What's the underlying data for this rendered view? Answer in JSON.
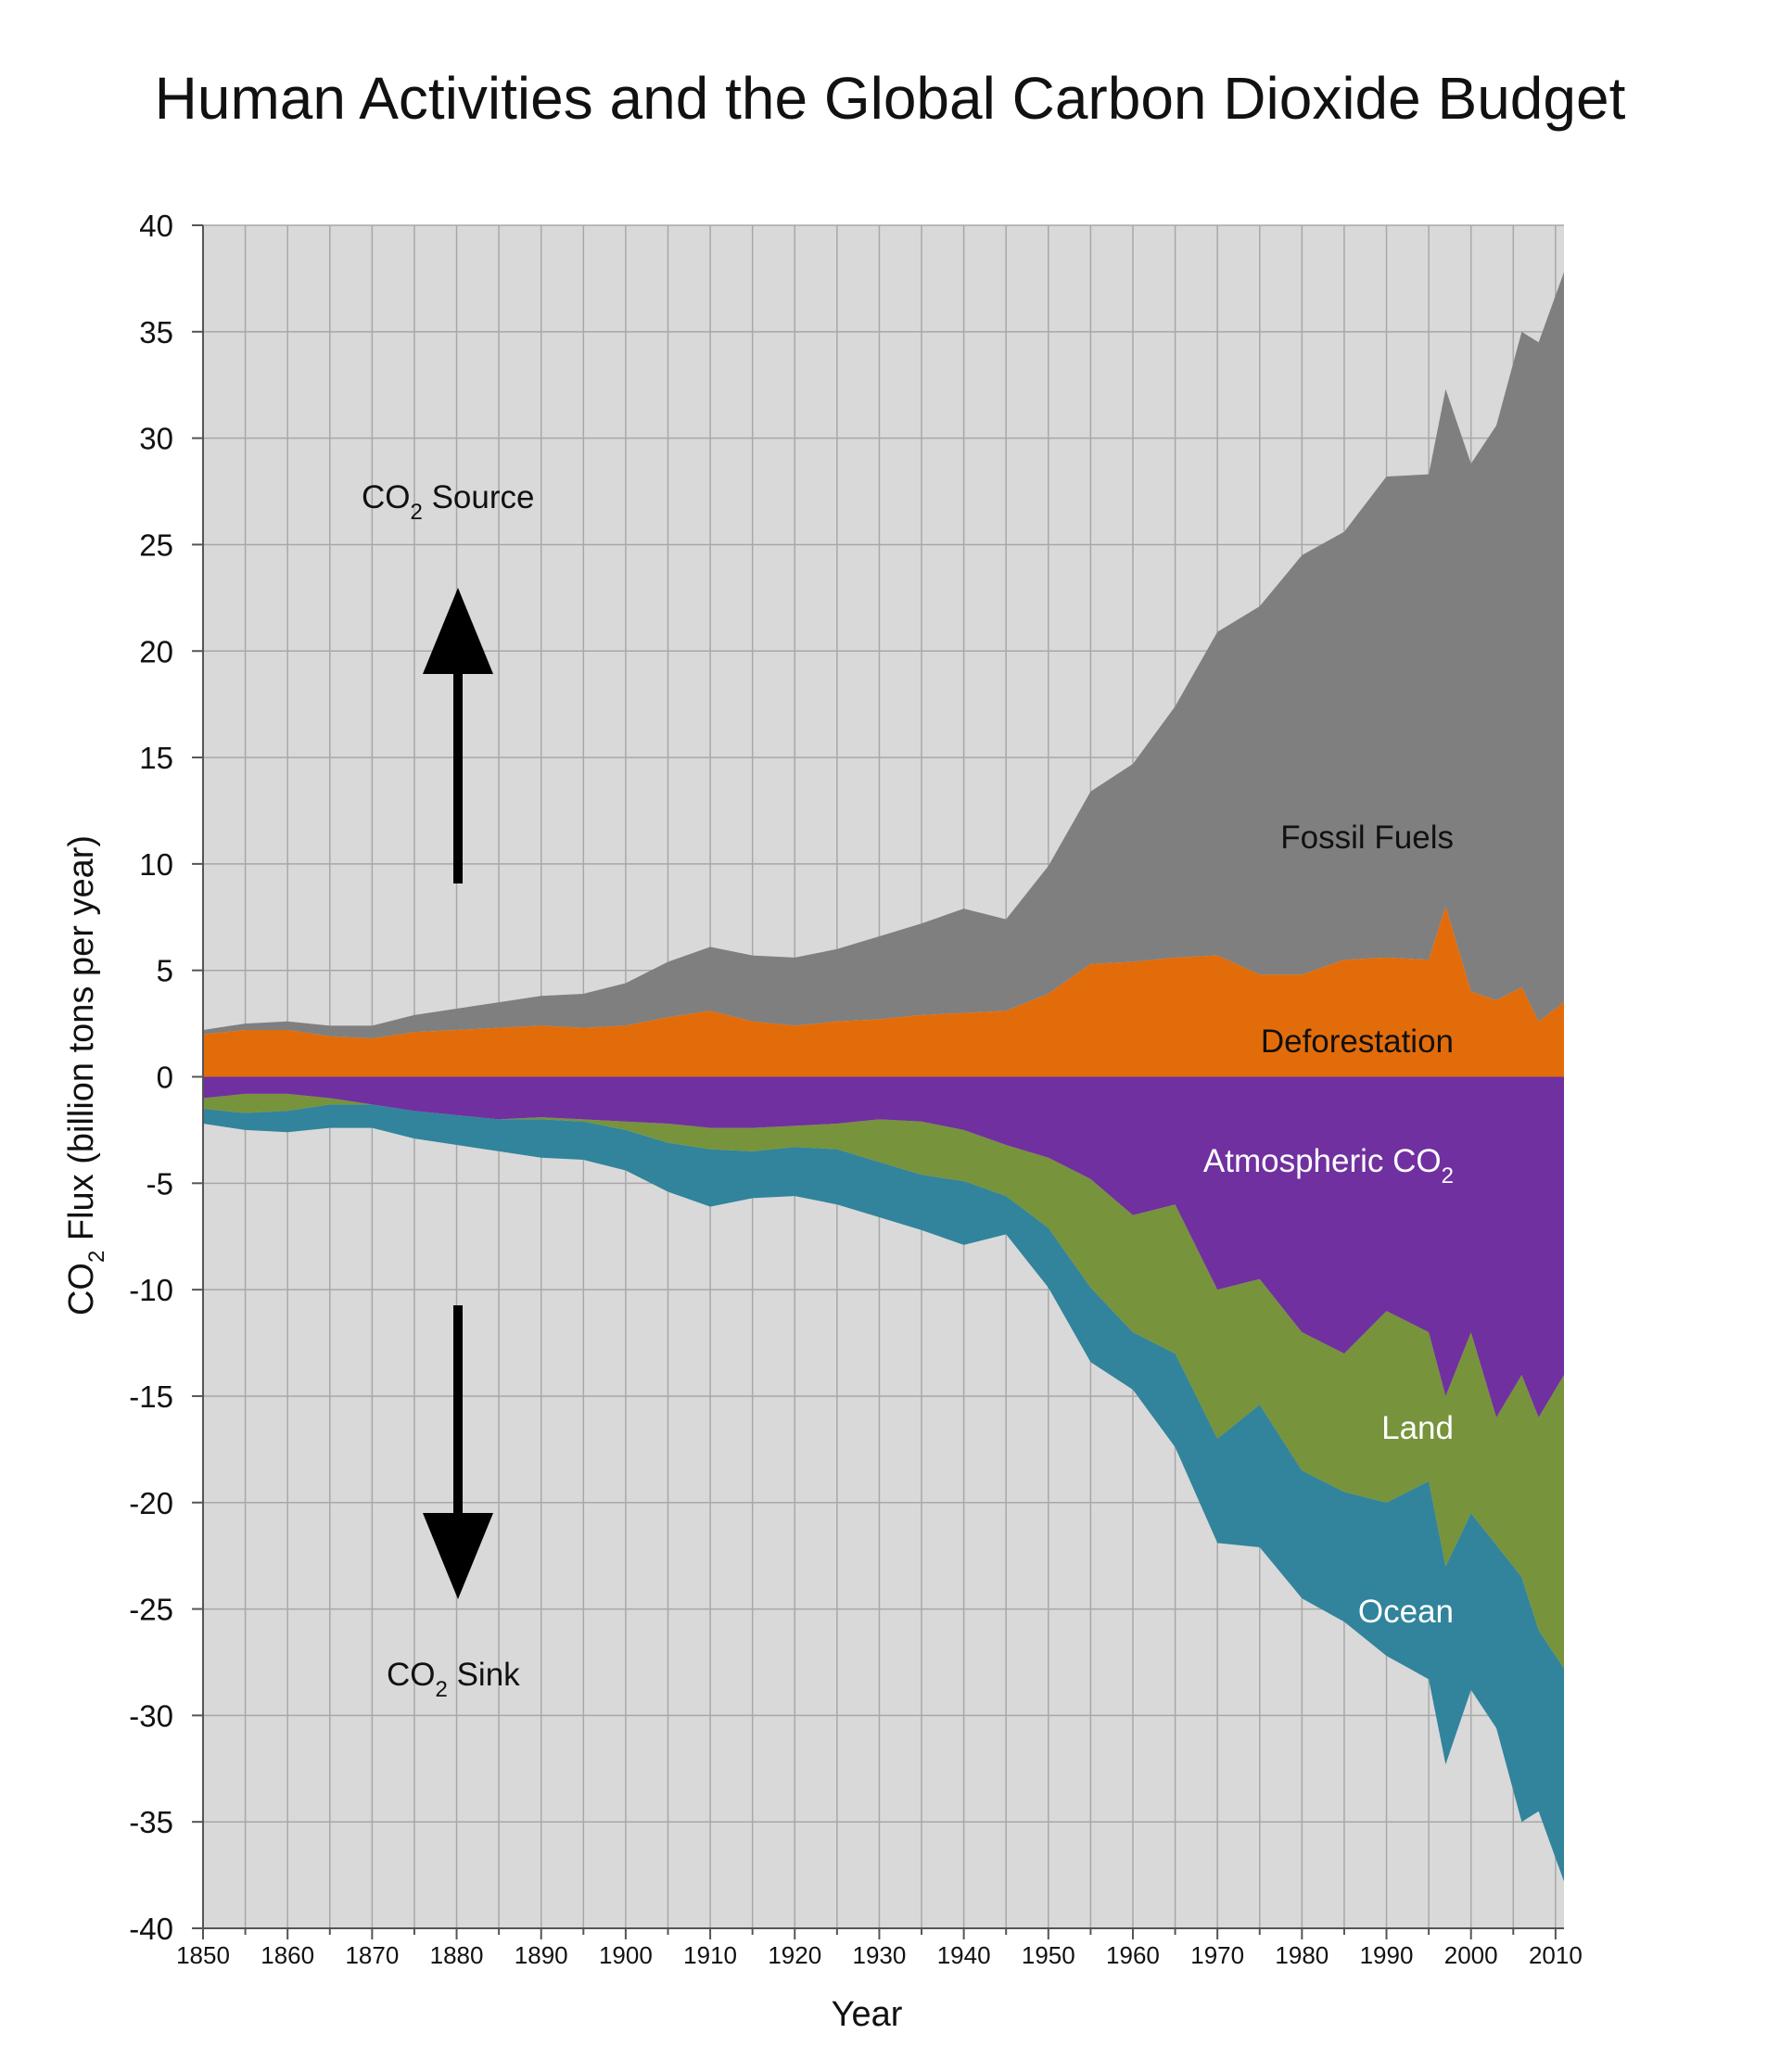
{
  "chart_data": {
    "type": "area",
    "title": "Human Activities and the Global Carbon Dioxide Budget",
    "xlabel": "Year",
    "ylabel": {
      "main": "CO",
      "sub": "2",
      "rest": " Flux (billion tons per year)"
    },
    "xlim": [
      1850,
      2011
    ],
    "ylim": [
      -40,
      40
    ],
    "x_ticks": [
      1850,
      1860,
      1870,
      1880,
      1890,
      1900,
      1910,
      1920,
      1930,
      1940,
      1950,
      1960,
      1970,
      1980,
      1990,
      2000,
      2010
    ],
    "y_ticks": [
      40,
      35,
      30,
      25,
      20,
      15,
      10,
      5,
      0,
      -5,
      -10,
      -15,
      -20,
      -25,
      -30,
      -35,
      -40
    ],
    "grid": true,
    "colors": {
      "plot_bg": "#d9d9d9",
      "grid": "#a8a8a8",
      "fossil_fuels": "#7f7f7f",
      "deforestation": "#e36c0a",
      "atmospheric": "#7030a0",
      "land": "#77933c",
      "ocean": "#31849b"
    },
    "x": [
      1850,
      1855,
      1860,
      1865,
      1870,
      1875,
      1880,
      1885,
      1890,
      1895,
      1900,
      1905,
      1910,
      1915,
      1920,
      1925,
      1930,
      1935,
      1940,
      1945,
      1950,
      1955,
      1960,
      1965,
      1970,
      1975,
      1980,
      1985,
      1990,
      1995,
      1997,
      2000,
      2003,
      2006,
      2008,
      2011
    ],
    "sources": [
      {
        "name": "Deforestation",
        "values": [
          2.0,
          2.2,
          2.2,
          1.9,
          1.8,
          2.1,
          2.2,
          2.3,
          2.4,
          2.3,
          2.4,
          2.8,
          3.1,
          2.6,
          2.4,
          2.6,
          2.7,
          2.9,
          3.0,
          3.1,
          3.9,
          5.3,
          5.4,
          5.6,
          5.7,
          4.8,
          4.8,
          5.5,
          5.6,
          5.5,
          8.0,
          4.0,
          3.6,
          4.2,
          2.6,
          3.5
        ]
      },
      {
        "name": "Fossil Fuels",
        "values": [
          0.2,
          0.3,
          0.4,
          0.5,
          0.6,
          0.8,
          1.0,
          1.2,
          1.4,
          1.6,
          2.0,
          2.6,
          3.0,
          3.1,
          3.2,
          3.4,
          3.9,
          4.3,
          4.9,
          4.3,
          6.0,
          8.1,
          9.3,
          11.8,
          15.2,
          17.3,
          19.7,
          20.1,
          22.6,
          22.8,
          24.3,
          24.8,
          27.0,
          30.8,
          31.9,
          34.3
        ]
      }
    ],
    "sinks": [
      {
        "name": "Atmospheric CO2",
        "values": [
          -1.0,
          -0.8,
          -0.8,
          -1.0,
          -1.3,
          -1.6,
          -1.8,
          -2.0,
          -1.9,
          -2.0,
          -2.1,
          -2.2,
          -2.4,
          -2.4,
          -2.3,
          -2.2,
          -2.0,
          -2.1,
          -2.5,
          -3.2,
          -3.8,
          -4.8,
          -6.5,
          -6.0,
          -10.0,
          -9.5,
          -12.0,
          -13.0,
          -11.0,
          -12.0,
          -15.0,
          -12.0,
          -16.0,
          -14.0,
          -16.0,
          -14.0
        ]
      },
      {
        "name": "Land",
        "values": [
          -0.5,
          -0.9,
          -0.8,
          -0.3,
          0.0,
          0.0,
          0.0,
          0.0,
          -0.1,
          -0.1,
          -0.4,
          -0.9,
          -1.0,
          -1.1,
          -1.0,
          -1.2,
          -2.0,
          -2.5,
          -2.4,
          -2.4,
          -3.3,
          -5.1,
          -5.5,
          -7.0,
          -7.0,
          -5.9,
          -6.5,
          -6.5,
          -9.0,
          -7.0,
          -8.0,
          -8.5,
          -6.0,
          -9.5,
          -10.0,
          -13.8
        ]
      },
      {
        "name": "Ocean",
        "values": [
          -0.7,
          -0.8,
          -1.0,
          -1.1,
          -1.1,
          -1.3,
          -1.4,
          -1.5,
          -1.8,
          -1.8,
          -1.9,
          -2.3,
          -2.7,
          -2.2,
          -2.3,
          -2.6,
          -2.6,
          -2.6,
          -3.0,
          -1.8,
          -2.8,
          -3.5,
          -2.7,
          -4.4,
          -4.9,
          -6.7,
          -6.0,
          -6.1,
          -7.2,
          -9.3,
          -9.3,
          -8.3,
          -8.6,
          -11.5,
          -8.5,
          -10.0
        ]
      }
    ],
    "labels": {
      "fossil_fuels": "Fossil Fuels",
      "deforestation": "Deforestation",
      "atmospheric": {
        "main": "Atmospheric CO",
        "sub": "2"
      },
      "land": "Land",
      "ocean": "Ocean",
      "source": {
        "main": "CO",
        "sub": "2",
        "rest": " Source"
      },
      "sink": {
        "main": "CO",
        "sub": "2",
        "rest": " Sink"
      }
    }
  }
}
